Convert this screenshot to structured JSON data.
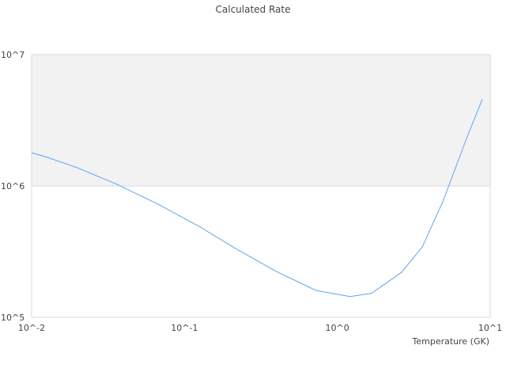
{
  "chart_data": {
    "type": "line",
    "title": "Calculated Rate",
    "xlabel": "Temperature (GK)",
    "ylabel": "",
    "x_scale": "log",
    "y_scale": "log",
    "xlim": [
      0.01,
      10
    ],
    "ylim": [
      100000,
      10000000
    ],
    "x_ticks": [
      {
        "value": 0.01,
        "label": "10^-2"
      },
      {
        "value": 0.1,
        "label": "10^-1"
      },
      {
        "value": 1,
        "label": "10^0"
      },
      {
        "value": 10,
        "label": "10^1"
      }
    ],
    "y_ticks": [
      {
        "value": 100000,
        "label": "10^5"
      },
      {
        "value": 1000000,
        "label": "10^6"
      },
      {
        "value": 10000000,
        "label": "10^7"
      }
    ],
    "band_colors": [
      "#f2f2f2",
      "#ffffff"
    ],
    "line_color": "#5aa5f0",
    "series": [
      {
        "x": [
          0.01,
          0.0127,
          0.0204,
          0.0362,
          0.0672,
          0.122,
          0.22,
          0.4,
          0.727,
          1.21,
          1.67,
          2.63,
          3.6,
          4.9,
          7.0,
          8.9
        ],
        "y": [
          1790000,
          1650000,
          1360000,
          1030000,
          726000,
          500000,
          330000,
          223000,
          160000,
          144000,
          152000,
          220000,
          344000,
          760000,
          2300000,
          4600000
        ]
      }
    ]
  }
}
